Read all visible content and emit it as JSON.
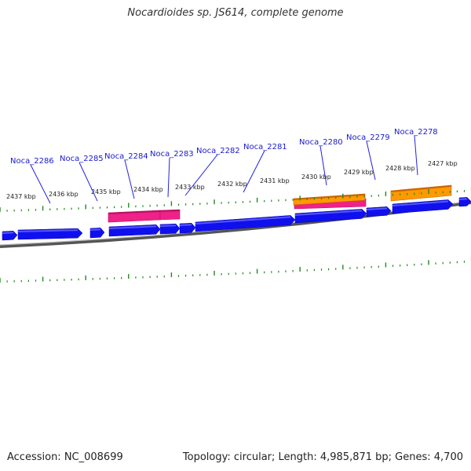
{
  "title": "Nocardioides sp. JS614, complete genome",
  "footer": {
    "accession": "Accession: NC_008699",
    "summary": "Topology: circular; Length: 4,985,871 bp; Genes: 4,700"
  },
  "colors": {
    "background": "#ffffff",
    "gene_forward": "#1010ee",
    "feature_pink": "#ee2288",
    "feature_orange": "#ff9900",
    "backbone": "#777777",
    "ticks": "#228822",
    "labels": "#1a1acc"
  },
  "scale_labels": [
    "2437 kbp",
    "2436 kbp",
    "2435 kbp",
    "2434 kbp",
    "2433 kbp",
    "2432 kbp",
    "2431 kbp",
    "2430 kbp",
    "2429 kbp",
    "2428 kbp",
    "2427 kbp"
  ],
  "gene_labels": [
    "Noca_2286",
    "Noca_2285",
    "Noca_2284",
    "Noca_2283",
    "Noca_2282",
    "Noca_2281",
    "Noca_2280",
    "Noca_2279",
    "Noca_2278"
  ]
}
